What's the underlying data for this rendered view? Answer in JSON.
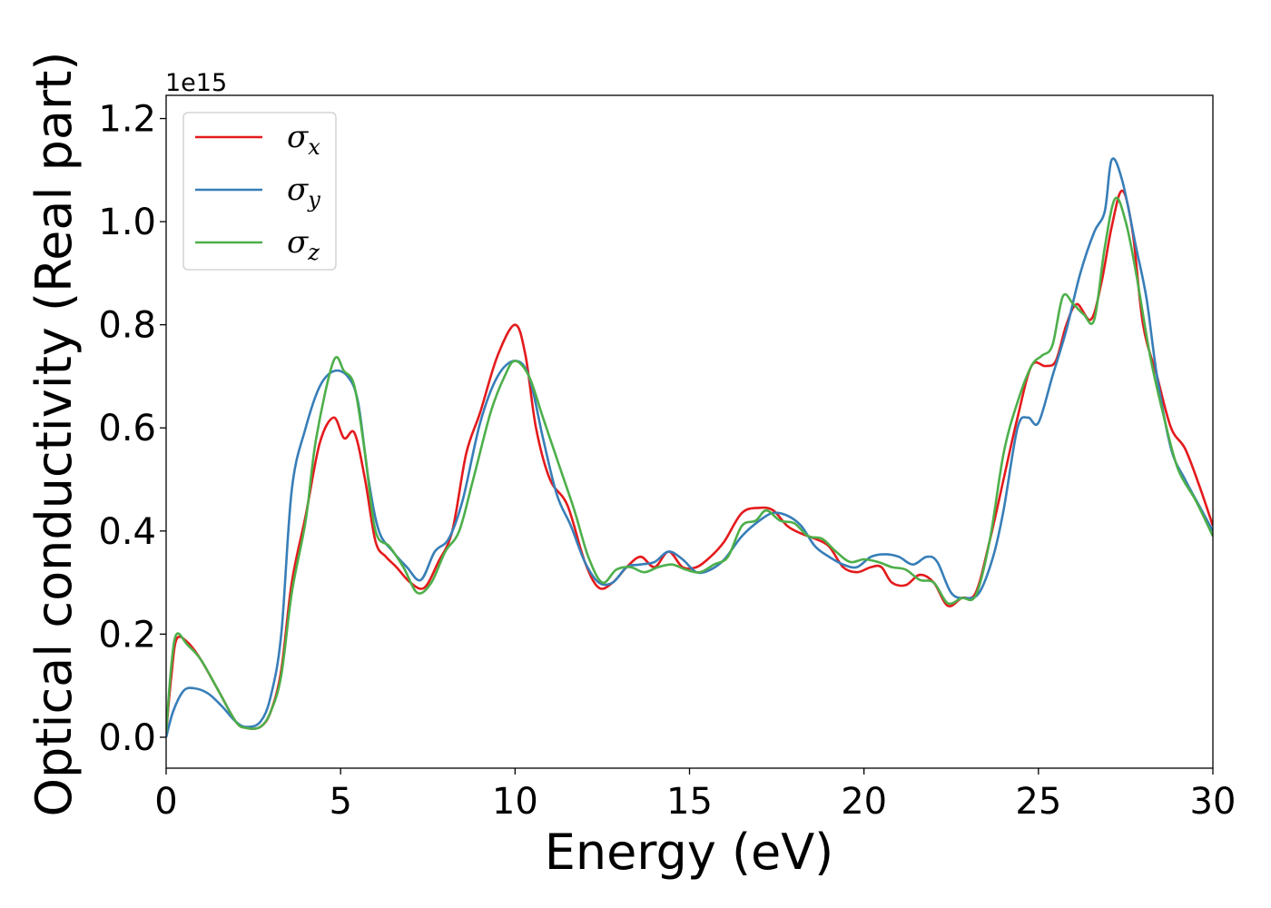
{
  "chart_data": {
    "type": "line",
    "title": "",
    "xlabel": "Energy (eV)",
    "ylabel": "Optical conductivity (Real part)",
    "y_offset_text": "1e15",
    "xlim": [
      0,
      30
    ],
    "ylim": [
      -0.06,
      1.245
    ],
    "x_ticks": [
      0,
      5,
      10,
      15,
      20,
      25,
      30
    ],
    "x_tick_labels": [
      "0",
      "5",
      "10",
      "15",
      "20",
      "25",
      "30"
    ],
    "y_ticks": [
      0.0,
      0.2,
      0.4,
      0.6,
      0.8,
      1.0,
      1.2
    ],
    "y_tick_labels": [
      "0.0",
      "0.2",
      "0.4",
      "0.6",
      "0.8",
      "1.0",
      "1.2"
    ],
    "grid": false,
    "legend_position": "top-left",
    "series": [
      {
        "name": "σ",
        "subscript": "x",
        "color": "#e41a1c",
        "points": [
          [
            0,
            0.01
          ],
          [
            0.15,
            0.12
          ],
          [
            0.3,
            0.19
          ],
          [
            0.6,
            0.185
          ],
          [
            1.0,
            0.15
          ],
          [
            1.5,
            0.09
          ],
          [
            2.0,
            0.03
          ],
          [
            2.3,
            0.018
          ],
          [
            2.7,
            0.02
          ],
          [
            3.0,
            0.05
          ],
          [
            3.3,
            0.13
          ],
          [
            3.6,
            0.3
          ],
          [
            4.0,
            0.43
          ],
          [
            4.4,
            0.57
          ],
          [
            4.8,
            0.62
          ],
          [
            5.1,
            0.58
          ],
          [
            5.4,
            0.59
          ],
          [
            5.7,
            0.5
          ],
          [
            6.0,
            0.38
          ],
          [
            6.3,
            0.35
          ],
          [
            6.6,
            0.33
          ],
          [
            7.0,
            0.3
          ],
          [
            7.4,
            0.29
          ],
          [
            7.8,
            0.34
          ],
          [
            8.2,
            0.4
          ],
          [
            8.6,
            0.55
          ],
          [
            9.0,
            0.63
          ],
          [
            9.5,
            0.74
          ],
          [
            10.0,
            0.8
          ],
          [
            10.3,
            0.74
          ],
          [
            10.6,
            0.6
          ],
          [
            11.0,
            0.5
          ],
          [
            11.5,
            0.45
          ],
          [
            12.0,
            0.34
          ],
          [
            12.4,
            0.29
          ],
          [
            12.8,
            0.3
          ],
          [
            13.2,
            0.33
          ],
          [
            13.6,
            0.35
          ],
          [
            14.0,
            0.33
          ],
          [
            14.4,
            0.36
          ],
          [
            14.8,
            0.33
          ],
          [
            15.2,
            0.33
          ],
          [
            15.6,
            0.35
          ],
          [
            16.0,
            0.38
          ],
          [
            16.5,
            0.435
          ],
          [
            17.0,
            0.445
          ],
          [
            17.4,
            0.44
          ],
          [
            17.8,
            0.41
          ],
          [
            18.2,
            0.395
          ],
          [
            18.6,
            0.385
          ],
          [
            19.0,
            0.37
          ],
          [
            19.4,
            0.33
          ],
          [
            19.8,
            0.32
          ],
          [
            20.2,
            0.33
          ],
          [
            20.5,
            0.33
          ],
          [
            20.8,
            0.3
          ],
          [
            21.2,
            0.295
          ],
          [
            21.6,
            0.315
          ],
          [
            22.0,
            0.3
          ],
          [
            22.4,
            0.255
          ],
          [
            22.8,
            0.27
          ],
          [
            23.2,
            0.28
          ],
          [
            23.6,
            0.38
          ],
          [
            24.0,
            0.5
          ],
          [
            24.4,
            0.62
          ],
          [
            24.8,
            0.72
          ],
          [
            25.2,
            0.72
          ],
          [
            25.5,
            0.73
          ],
          [
            25.8,
            0.8
          ],
          [
            26.1,
            0.84
          ],
          [
            26.5,
            0.81
          ],
          [
            26.8,
            0.88
          ],
          [
            27.1,
            0.99
          ],
          [
            27.4,
            1.06
          ],
          [
            27.7,
            0.98
          ],
          [
            28.0,
            0.8
          ],
          [
            28.4,
            0.7
          ],
          [
            28.8,
            0.6
          ],
          [
            29.2,
            0.56
          ],
          [
            29.6,
            0.49
          ],
          [
            30.0,
            0.41
          ]
        ]
      },
      {
        "name": "σ",
        "subscript": "y",
        "color": "#377eb8",
        "points": [
          [
            0,
            0.0
          ],
          [
            0.2,
            0.05
          ],
          [
            0.5,
            0.09
          ],
          [
            0.8,
            0.095
          ],
          [
            1.2,
            0.085
          ],
          [
            1.6,
            0.06
          ],
          [
            2.0,
            0.03
          ],
          [
            2.3,
            0.02
          ],
          [
            2.7,
            0.03
          ],
          [
            3.0,
            0.08
          ],
          [
            3.3,
            0.2
          ],
          [
            3.6,
            0.48
          ],
          [
            4.0,
            0.6
          ],
          [
            4.4,
            0.68
          ],
          [
            4.8,
            0.71
          ],
          [
            5.2,
            0.7
          ],
          [
            5.5,
            0.65
          ],
          [
            5.8,
            0.5
          ],
          [
            6.1,
            0.4
          ],
          [
            6.5,
            0.36
          ],
          [
            6.9,
            0.33
          ],
          [
            7.3,
            0.305
          ],
          [
            7.7,
            0.36
          ],
          [
            8.1,
            0.385
          ],
          [
            8.5,
            0.46
          ],
          [
            9.0,
            0.61
          ],
          [
            9.5,
            0.7
          ],
          [
            10.0,
            0.73
          ],
          [
            10.4,
            0.7
          ],
          [
            10.8,
            0.58
          ],
          [
            11.2,
            0.47
          ],
          [
            11.6,
            0.41
          ],
          [
            12.0,
            0.34
          ],
          [
            12.4,
            0.3
          ],
          [
            12.8,
            0.3
          ],
          [
            13.2,
            0.33
          ],
          [
            13.6,
            0.335
          ],
          [
            14.0,
            0.34
          ],
          [
            14.4,
            0.36
          ],
          [
            14.8,
            0.345
          ],
          [
            15.2,
            0.32
          ],
          [
            15.6,
            0.325
          ],
          [
            16.0,
            0.345
          ],
          [
            16.5,
            0.39
          ],
          [
            17.0,
            0.42
          ],
          [
            17.4,
            0.435
          ],
          [
            17.8,
            0.43
          ],
          [
            18.2,
            0.41
          ],
          [
            18.6,
            0.37
          ],
          [
            19.0,
            0.35
          ],
          [
            19.4,
            0.335
          ],
          [
            19.8,
            0.33
          ],
          [
            20.2,
            0.35
          ],
          [
            20.6,
            0.355
          ],
          [
            21.0,
            0.35
          ],
          [
            21.4,
            0.335
          ],
          [
            21.8,
            0.35
          ],
          [
            22.1,
            0.34
          ],
          [
            22.5,
            0.28
          ],
          [
            22.9,
            0.27
          ],
          [
            23.3,
            0.28
          ],
          [
            23.7,
            0.35
          ],
          [
            24.0,
            0.44
          ],
          [
            24.4,
            0.6
          ],
          [
            24.7,
            0.62
          ],
          [
            25.0,
            0.61
          ],
          [
            25.4,
            0.7
          ],
          [
            25.8,
            0.79
          ],
          [
            26.2,
            0.9
          ],
          [
            26.6,
            0.98
          ],
          [
            26.9,
            1.02
          ],
          [
            27.1,
            1.12
          ],
          [
            27.4,
            1.08
          ],
          [
            27.8,
            0.95
          ],
          [
            28.1,
            0.85
          ],
          [
            28.4,
            0.7
          ],
          [
            28.8,
            0.56
          ],
          [
            29.2,
            0.5
          ],
          [
            29.6,
            0.45
          ],
          [
            30.0,
            0.4
          ]
        ]
      },
      {
        "name": "σ",
        "subscript": "z",
        "color": "#4daf4a",
        "points": [
          [
            0,
            0.01
          ],
          [
            0.15,
            0.14
          ],
          [
            0.3,
            0.2
          ],
          [
            0.6,
            0.18
          ],
          [
            1.0,
            0.15
          ],
          [
            1.5,
            0.09
          ],
          [
            2.0,
            0.03
          ],
          [
            2.3,
            0.018
          ],
          [
            2.7,
            0.02
          ],
          [
            3.0,
            0.05
          ],
          [
            3.3,
            0.12
          ],
          [
            3.6,
            0.28
          ],
          [
            4.0,
            0.42
          ],
          [
            4.3,
            0.58
          ],
          [
            4.8,
            0.73
          ],
          [
            5.1,
            0.71
          ],
          [
            5.4,
            0.68
          ],
          [
            5.7,
            0.55
          ],
          [
            6.0,
            0.4
          ],
          [
            6.4,
            0.37
          ],
          [
            6.8,
            0.33
          ],
          [
            7.2,
            0.28
          ],
          [
            7.6,
            0.3
          ],
          [
            8.0,
            0.36
          ],
          [
            8.4,
            0.4
          ],
          [
            8.8,
            0.5
          ],
          [
            9.3,
            0.63
          ],
          [
            9.7,
            0.7
          ],
          [
            10.0,
            0.73
          ],
          [
            10.4,
            0.7
          ],
          [
            10.8,
            0.62
          ],
          [
            11.3,
            0.52
          ],
          [
            11.7,
            0.44
          ],
          [
            12.1,
            0.35
          ],
          [
            12.5,
            0.3
          ],
          [
            12.9,
            0.325
          ],
          [
            13.3,
            0.33
          ],
          [
            13.7,
            0.32
          ],
          [
            14.1,
            0.33
          ],
          [
            14.5,
            0.335
          ],
          [
            14.9,
            0.325
          ],
          [
            15.3,
            0.32
          ],
          [
            15.7,
            0.335
          ],
          [
            16.1,
            0.35
          ],
          [
            16.5,
            0.41
          ],
          [
            16.9,
            0.42
          ],
          [
            17.2,
            0.44
          ],
          [
            17.6,
            0.42
          ],
          [
            18.0,
            0.415
          ],
          [
            18.4,
            0.39
          ],
          [
            18.8,
            0.385
          ],
          [
            19.2,
            0.36
          ],
          [
            19.6,
            0.34
          ],
          [
            20.0,
            0.345
          ],
          [
            20.4,
            0.34
          ],
          [
            20.8,
            0.33
          ],
          [
            21.2,
            0.325
          ],
          [
            21.6,
            0.305
          ],
          [
            22.0,
            0.3
          ],
          [
            22.4,
            0.26
          ],
          [
            22.8,
            0.27
          ],
          [
            23.2,
            0.275
          ],
          [
            23.6,
            0.38
          ],
          [
            24.0,
            0.55
          ],
          [
            24.4,
            0.65
          ],
          [
            24.8,
            0.72
          ],
          [
            25.1,
            0.74
          ],
          [
            25.4,
            0.76
          ],
          [
            25.7,
            0.855
          ],
          [
            26.0,
            0.84
          ],
          [
            26.3,
            0.82
          ],
          [
            26.6,
            0.81
          ],
          [
            26.9,
            0.95
          ],
          [
            27.2,
            1.045
          ],
          [
            27.5,
            1.0
          ],
          [
            27.8,
            0.9
          ],
          [
            28.2,
            0.74
          ],
          [
            28.6,
            0.62
          ],
          [
            29.0,
            0.52
          ],
          [
            29.5,
            0.46
          ],
          [
            30.0,
            0.39
          ]
        ]
      }
    ]
  }
}
